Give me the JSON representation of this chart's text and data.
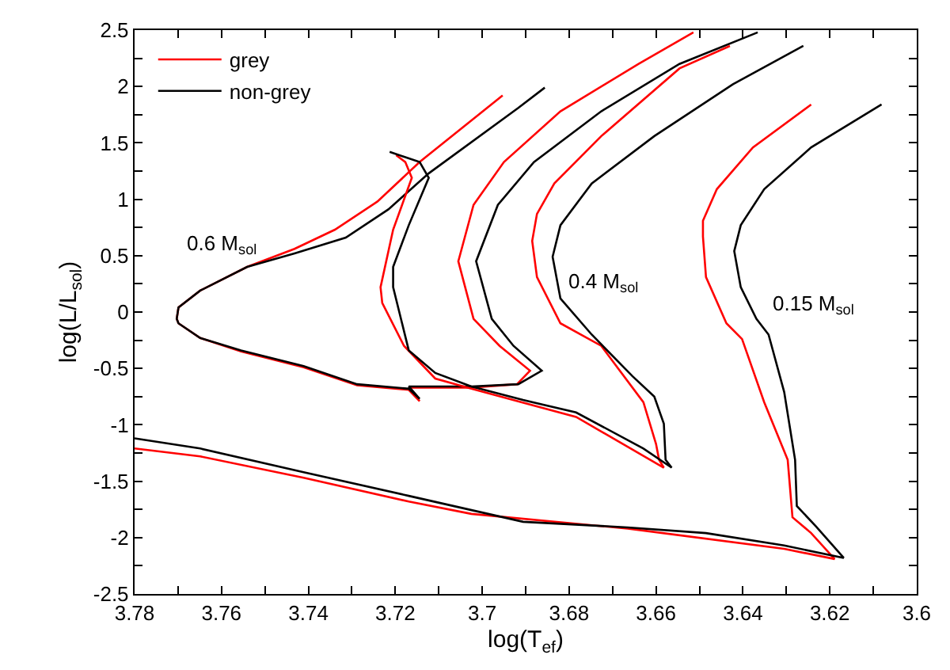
{
  "chart_data": {
    "type": "line",
    "xlabel": "log(T$_{ef}$)",
    "ylabel": "log(L/L$_{sol}$)",
    "xlim": [
      3.78,
      3.6
    ],
    "ylim": [
      -2.5,
      2.5
    ],
    "xticks": [
      3.78,
      {
        "value": 3.77,
        "label": null
      },
      3.76,
      {
        "value": 3.75,
        "label": null
      },
      3.74,
      {
        "value": 3.73,
        "label": null
      },
      3.72,
      {
        "value": 3.71,
        "label": null
      },
      3.7,
      {
        "value": 3.69,
        "label": null
      },
      3.68,
      {
        "value": 3.67,
        "label": null
      },
      3.66,
      {
        "value": 3.65,
        "label": null
      },
      3.64,
      {
        "value": 3.63,
        "label": null
      },
      3.62,
      {
        "value": 3.61,
        "label": null
      },
      3.6
    ],
    "yticks": [
      -2.5,
      {
        "value": -2.25,
        "label": null
      },
      -2,
      {
        "value": -1.75,
        "label": null
      },
      -1.5,
      {
        "value": -1.25,
        "label": null
      },
      -1,
      {
        "value": -0.75,
        "label": null
      },
      -0.5,
      {
        "value": -0.25,
        "label": null
      },
      0,
      {
        "value": 0.25,
        "label": null
      },
      0.5,
      {
        "value": 0.75,
        "label": null
      },
      1,
      {
        "value": 1.25,
        "label": null
      },
      1.5,
      {
        "value": 1.75,
        "label": null
      },
      2,
      {
        "value": 2.25,
        "label": null
      },
      2.5
    ],
    "legend": "top left",
    "marker": "none",
    "line_style": "solid",
    "series": [
      {
        "name": "grey",
        "color": "#ff0000",
        "x": [
          3.6514,
          3.664,
          3.682,
          3.695,
          3.702,
          3.7055,
          3.702,
          3.696,
          3.689,
          3.692,
          3.7025,
          3.7169,
          3.7144,
          3.7169,
          3.7288,
          3.7411,
          3.7555,
          3.7649,
          3.7699,
          3.7703,
          3.7699,
          3.7649,
          3.7541,
          3.7432,
          3.7339,
          3.7241,
          3.7144,
          3.6953
        ],
        "values": [
          2.48,
          2.2,
          1.78,
          1.33,
          0.95,
          0.45,
          -0.06,
          -0.3,
          -0.52,
          -0.64,
          -0.67,
          -0.67,
          -0.79,
          -0.69,
          -0.65,
          -0.49,
          -0.35,
          -0.23,
          -0.1,
          -0.06,
          0.04,
          0.19,
          0.4,
          0.56,
          0.73,
          0.98,
          1.33,
          1.92
        ]
      },
      {
        "name": "non-grey",
        "color": "#000000",
        "x": [
          3.6366,
          3.6546,
          3.6726,
          3.6881,
          3.6964,
          3.7014,
          3.6978,
          3.6928,
          3.6863,
          3.6917,
          3.7025,
          3.7169,
          3.7144,
          3.7169,
          3.7288,
          3.7411,
          3.7555,
          3.7649,
          3.7699,
          3.7703,
          3.7699,
          3.7649,
          3.7541,
          3.7432,
          3.7314,
          3.7216,
          3.7123,
          3.6917,
          3.6856
        ],
        "values": [
          2.48,
          2.2,
          1.78,
          1.33,
          0.95,
          0.45,
          -0.06,
          -0.3,
          -0.52,
          -0.64,
          -0.66,
          -0.66,
          -0.77,
          -0.68,
          -0.64,
          -0.48,
          -0.34,
          -0.23,
          -0.1,
          -0.06,
          0.04,
          0.19,
          0.4,
          0.52,
          0.66,
          0.91,
          1.23,
          1.81,
          1.99
        ]
      },
      {
        "color": "#ff0000",
        "x": [
          3.643,
          3.6546,
          3.6726,
          3.6834,
          3.6874,
          3.6885,
          3.6874,
          3.682,
          3.6726,
          3.6629,
          3.66,
          3.6593,
          3.6582,
          3.6784,
          3.7025,
          3.7108,
          3.718,
          3.723,
          3.7234,
          3.7205,
          3.7162,
          3.7177,
          3.7198
        ],
        "values": [
          2.36,
          2.16,
          1.56,
          1.14,
          0.87,
          0.63,
          0.31,
          -0.1,
          -0.3,
          -0.8,
          -1.17,
          -1.31,
          -1.38,
          -0.93,
          -0.68,
          -0.59,
          -0.3,
          0.08,
          0.22,
          0.73,
          1.19,
          1.33,
          1.39
        ]
      },
      {
        "color": "#000000",
        "x": [
          3.6261,
          3.6423,
          3.6604,
          3.6748,
          3.682,
          3.6838,
          3.682,
          3.6748,
          3.6654,
          3.6604,
          3.6582,
          3.6578,
          3.6564,
          3.6629,
          3.6784,
          3.6906,
          3.7025,
          3.7108,
          3.7169,
          3.7187,
          3.7205,
          3.7205,
          3.7169,
          3.7123,
          3.7144,
          3.7213
        ],
        "values": [
          2.36,
          2.02,
          1.56,
          1.14,
          0.77,
          0.49,
          0.12,
          -0.2,
          -0.57,
          -0.75,
          -0.99,
          -1.31,
          -1.38,
          -1.21,
          -0.89,
          -0.78,
          -0.66,
          -0.54,
          -0.34,
          -0.06,
          0.22,
          0.4,
          0.77,
          1.19,
          1.33,
          1.42
        ]
      },
      {
        "color": "#ff0000",
        "x": [
          3.6243,
          3.6377,
          3.646,
          3.6492,
          3.6492,
          3.6485,
          3.6438,
          3.6402,
          3.6351,
          3.6297,
          3.6286,
          3.6243,
          3.6189,
          3.6305,
          3.6665,
          3.7025,
          3.7169,
          3.7411,
          3.7649,
          3.78
        ],
        "values": [
          1.84,
          1.46,
          1.09,
          0.81,
          0.67,
          0.31,
          -0.1,
          -0.24,
          -0.8,
          -1.31,
          -1.82,
          -1.96,
          -2.19,
          -2.1,
          -1.92,
          -1.79,
          -1.68,
          -1.47,
          -1.28,
          -1.21
        ]
      },
      {
        "color": "#000000",
        "x": [
          3.6081,
          3.6243,
          3.6351,
          3.6405,
          3.642,
          3.6405,
          3.6369,
          3.6341,
          3.6305,
          3.628,
          3.6276,
          3.6232,
          3.6168,
          3.6305,
          3.6485,
          3.6665,
          3.6906,
          3.7169,
          3.7411,
          3.7649,
          3.78
        ],
        "values": [
          1.84,
          1.46,
          1.09,
          0.77,
          0.54,
          0.22,
          -0.06,
          -0.2,
          -0.71,
          -1.31,
          -1.72,
          -1.9,
          -2.18,
          -2.07,
          -1.96,
          -1.91,
          -1.86,
          -1.63,
          -1.42,
          -1.21,
          -1.12
        ]
      }
    ],
    "annotations": [
      "0.6 M$_{sol}$",
      "0.4 M$_{sol}$",
      "0.15 M$_{sol}$"
    ]
  }
}
